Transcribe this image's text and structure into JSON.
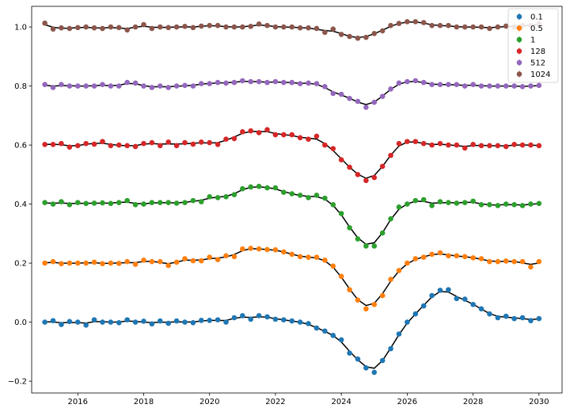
{
  "chart_data": {
    "type": "scatter",
    "title": "",
    "xlabel": "",
    "ylabel": "",
    "xlim": [
      2014.6,
      2030.7
    ],
    "ylim": [
      -0.24,
      1.07
    ],
    "xticks": [
      2016,
      2018,
      2020,
      2022,
      2024,
      2026,
      2028,
      2030
    ],
    "yticks": [
      -0.2,
      0.0,
      0.2,
      0.4,
      0.6,
      0.8,
      1.0
    ],
    "ytick_labels": [
      "−0.2",
      "0.0",
      "0.2",
      "0.4",
      "0.6",
      "0.8",
      "1.0"
    ],
    "grid": false,
    "legend_position": "top-right",
    "fit_line_color": "#000000",
    "x": [
      2015.0,
      2015.25,
      2015.5,
      2015.75,
      2016.0,
      2016.25,
      2016.5,
      2016.75,
      2017.0,
      2017.25,
      2017.5,
      2017.75,
      2018.0,
      2018.25,
      2018.5,
      2018.75,
      2019.0,
      2019.25,
      2019.5,
      2019.75,
      2020.0,
      2020.25,
      2020.5,
      2020.75,
      2021.0,
      2021.25,
      2021.5,
      2021.75,
      2022.0,
      2022.25,
      2022.5,
      2022.75,
      2023.0,
      2023.25,
      2023.5,
      2023.75,
      2024.0,
      2024.25,
      2024.5,
      2024.75,
      2025.0,
      2025.25,
      2025.5,
      2025.75,
      2026.0,
      2026.25,
      2026.5,
      2026.75,
      2027.0,
      2027.25,
      2027.5,
      2027.75,
      2028.0,
      2028.25,
      2028.5,
      2028.75,
      2029.0,
      2029.25,
      2029.5,
      2029.75,
      2030.0
    ],
    "series": [
      {
        "name": "0.1",
        "color": "#1f77b4",
        "values": [
          0.0,
          0.005,
          -0.008,
          0.002,
          0.0,
          -0.01,
          0.008,
          0.0,
          0.0,
          -0.002,
          0.008,
          0.0,
          0.003,
          -0.006,
          0.004,
          -0.004,
          0.004,
          0.0,
          -0.002,
          0.006,
          0.006,
          0.008,
          0.0,
          0.015,
          0.022,
          0.01,
          0.022,
          0.018,
          0.01,
          0.008,
          0.004,
          0.0,
          -0.005,
          -0.02,
          -0.03,
          -0.045,
          -0.06,
          -0.105,
          -0.125,
          -0.155,
          -0.17,
          -0.13,
          -0.09,
          -0.04,
          0.0,
          0.028,
          0.055,
          0.09,
          0.108,
          0.11,
          0.08,
          0.078,
          0.06,
          0.045,
          0.028,
          0.015,
          0.02,
          0.012,
          0.015,
          0.005,
          0.012
        ]
      },
      {
        "name": "0.5",
        "color": "#ff7f0e",
        "values": [
          0.2,
          0.205,
          0.198,
          0.2,
          0.2,
          0.2,
          0.203,
          0.198,
          0.2,
          0.199,
          0.205,
          0.196,
          0.21,
          0.205,
          0.205,
          0.192,
          0.203,
          0.215,
          0.208,
          0.208,
          0.22,
          0.212,
          0.225,
          0.222,
          0.248,
          0.25,
          0.248,
          0.246,
          0.245,
          0.238,
          0.23,
          0.222,
          0.22,
          0.22,
          0.21,
          0.19,
          0.155,
          0.11,
          0.075,
          0.045,
          0.06,
          0.09,
          0.145,
          0.175,
          0.2,
          0.215,
          0.22,
          0.23,
          0.235,
          0.225,
          0.225,
          0.222,
          0.218,
          0.215,
          0.205,
          0.205,
          0.207,
          0.205,
          0.205,
          0.187,
          0.205
        ]
      },
      {
        "name": "1",
        "color": "#2ca02c",
        "values": [
          0.405,
          0.4,
          0.408,
          0.398,
          0.405,
          0.402,
          0.403,
          0.404,
          0.402,
          0.405,
          0.412,
          0.398,
          0.4,
          0.405,
          0.405,
          0.405,
          0.403,
          0.405,
          0.412,
          0.408,
          0.425,
          0.422,
          0.425,
          0.432,
          0.452,
          0.458,
          0.46,
          0.455,
          0.455,
          0.44,
          0.435,
          0.43,
          0.422,
          0.43,
          0.42,
          0.398,
          0.368,
          0.32,
          0.282,
          0.258,
          0.258,
          0.302,
          0.35,
          0.39,
          0.4,
          0.412,
          0.415,
          0.395,
          0.408,
          0.405,
          0.403,
          0.405,
          0.41,
          0.398,
          0.398,
          0.395,
          0.4,
          0.398,
          0.395,
          0.4,
          0.402
        ]
      },
      {
        "name": "128",
        "color": "#d62728",
        "values": [
          0.602,
          0.602,
          0.605,
          0.593,
          0.598,
          0.605,
          0.603,
          0.612,
          0.598,
          0.6,
          0.598,
          0.595,
          0.605,
          0.608,
          0.598,
          0.61,
          0.598,
          0.608,
          0.603,
          0.61,
          0.608,
          0.602,
          0.62,
          0.622,
          0.645,
          0.648,
          0.642,
          0.652,
          0.635,
          0.635,
          0.635,
          0.625,
          0.62,
          0.63,
          0.6,
          0.588,
          0.55,
          0.525,
          0.5,
          0.48,
          0.49,
          0.528,
          0.565,
          0.605,
          0.612,
          0.612,
          0.605,
          0.6,
          0.605,
          0.6,
          0.6,
          0.59,
          0.602,
          0.598,
          0.598,
          0.598,
          0.595,
          0.602,
          0.6,
          0.6,
          0.598
        ]
      },
      {
        "name": "512",
        "color": "#9467bd",
        "values": [
          0.805,
          0.795,
          0.805,
          0.8,
          0.8,
          0.8,
          0.8,
          0.805,
          0.8,
          0.8,
          0.812,
          0.81,
          0.8,
          0.795,
          0.8,
          0.795,
          0.8,
          0.802,
          0.8,
          0.808,
          0.808,
          0.812,
          0.81,
          0.812,
          0.818,
          0.815,
          0.815,
          0.812,
          0.815,
          0.812,
          0.812,
          0.808,
          0.81,
          0.808,
          0.798,
          0.775,
          0.772,
          0.758,
          0.748,
          0.728,
          0.745,
          0.765,
          0.79,
          0.81,
          0.815,
          0.818,
          0.812,
          0.805,
          0.805,
          0.805,
          0.805,
          0.8,
          0.805,
          0.8,
          0.8,
          0.8,
          0.8,
          0.8,
          0.798,
          0.8,
          0.802
        ]
      },
      {
        "name": "1024",
        "color": "#8c564b",
        "values": [
          1.013,
          0.993,
          0.997,
          0.995,
          0.998,
          1.0,
          0.997,
          0.995,
          1.0,
          0.998,
          0.99,
          1.0,
          1.008,
          0.995,
          1.0,
          0.998,
          1.0,
          1.002,
          0.998,
          1.003,
          1.005,
          1.005,
          1.0,
          1.0,
          1.0,
          1.002,
          1.01,
          1.005,
          1.0,
          1.0,
          1.0,
          0.997,
          0.997,
          0.995,
          0.982,
          0.993,
          0.975,
          0.968,
          0.962,
          0.965,
          0.978,
          0.987,
          1.005,
          1.012,
          1.018,
          1.018,
          1.015,
          1.005,
          1.005,
          1.005,
          1.0,
          1.0,
          1.0,
          1.0,
          0.995,
          1.0,
          1.003,
          1.0,
          1.005,
          1.005,
          1.01
        ]
      }
    ]
  }
}
